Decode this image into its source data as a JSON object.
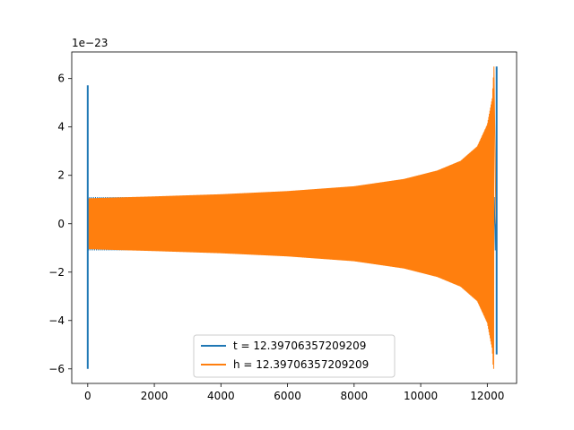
{
  "chart_data": {
    "type": "line",
    "title": "",
    "xlabel": "",
    "ylabel": "",
    "offset_text": "1e−23",
    "xlim": [
      -480,
      12880
    ],
    "ylim": [
      -6.6,
      7.1
    ],
    "xticks": [
      0,
      2000,
      4000,
      6000,
      8000,
      10000,
      12000
    ],
    "yticks": [
      -6,
      -4,
      -2,
      0,
      2,
      4,
      6
    ],
    "grid": false,
    "legend_position": "lower center",
    "colors": {
      "t": "#1f77b4",
      "h": "#ff7f0e"
    },
    "series": [
      {
        "name": "t = 12.39706357209209",
        "color": "#1f77b4",
        "spikes": [
          {
            "x": 0,
            "y_min": -6.0,
            "y_max": 5.72
          },
          {
            "x": 12280,
            "y_min": -5.4,
            "y_max": 6.5
          }
        ],
        "envelope": [
          [
            0,
            1.1
          ],
          [
            12270,
            1.1
          ]
        ]
      },
      {
        "name": "h = 12.39706357209209",
        "color": "#ff7f0e",
        "envelope": [
          [
            0,
            1.05
          ],
          [
            2000,
            1.13
          ],
          [
            4000,
            1.22
          ],
          [
            6000,
            1.35
          ],
          [
            8000,
            1.55
          ],
          [
            9500,
            1.85
          ],
          [
            10500,
            2.2
          ],
          [
            11200,
            2.6
          ],
          [
            11700,
            3.2
          ],
          [
            12000,
            4.1
          ],
          [
            12150,
            5.2
          ],
          [
            12200,
            6.5
          ]
        ],
        "tail_to": 12260,
        "min_peak": -6.0
      }
    ]
  }
}
